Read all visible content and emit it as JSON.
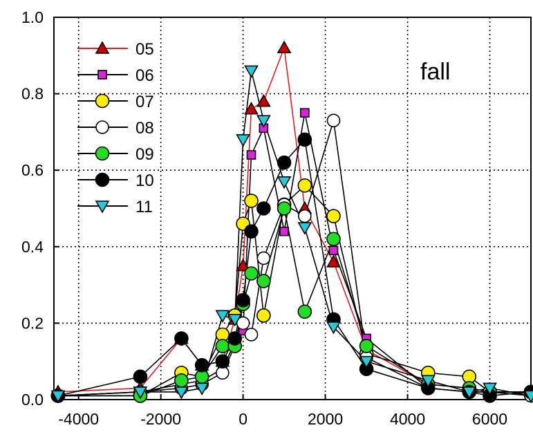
{
  "chart_data": {
    "type": "line",
    "title": "",
    "xlabel": "",
    "ylabel": "",
    "annotation": "fall",
    "xlim": [
      -4600,
      7000
    ],
    "ylim": [
      0,
      1.0
    ],
    "xticks": [
      "-4000",
      "-2000",
      "0",
      "2000",
      "4000",
      "6000"
    ],
    "yticks": [
      "0.0",
      "0.2",
      "0.4",
      "0.6",
      "0.8",
      "1.0"
    ],
    "grid": true,
    "legend_position": "top-left",
    "series": [
      {
        "name": "05",
        "marker": "triangle-up",
        "fill": "#cc0000",
        "line": "#e81c1c",
        "x": [
          -4500,
          -2500,
          -1500,
          -1000,
          -500,
          -200,
          0,
          200,
          500,
          1000,
          1500,
          2200,
          3000,
          4500,
          5500,
          6000,
          7000
        ],
        "y": [
          0.02,
          0.03,
          0.16,
          0.09,
          0.1,
          0.21,
          0.35,
          0.76,
          0.78,
          0.92,
          0.5,
          0.36,
          0.13,
          0.04,
          0.03,
          0.02,
          0.02
        ]
      },
      {
        "name": "06",
        "marker": "square",
        "fill": "#dd22dd",
        "line": "#000000",
        "x": [
          -4500,
          -2500,
          -1500,
          -1000,
          -500,
          -200,
          0,
          200,
          500,
          1000,
          1500,
          2200,
          3000,
          4500,
          5500,
          6000,
          7000
        ],
        "y": [
          0.01,
          0.02,
          0.04,
          0.05,
          0.08,
          0.15,
          0.18,
          0.64,
          0.71,
          0.44,
          0.75,
          0.39,
          0.16,
          0.03,
          0.02,
          0.02,
          0.01
        ]
      },
      {
        "name": "07",
        "marker": "circle",
        "fill": "#ffee00",
        "line": "#000000",
        "x": [
          -4500,
          -2500,
          -1500,
          -1000,
          -500,
          -200,
          0,
          200,
          500,
          1000,
          1500,
          2200,
          3000,
          4500,
          5500,
          6000,
          7000
        ],
        "y": [
          0.01,
          0.01,
          0.07,
          0.06,
          0.17,
          0.22,
          0.46,
          0.52,
          0.22,
          0.51,
          0.56,
          0.48,
          0.12,
          0.07,
          0.06,
          0.02,
          0.02
        ]
      },
      {
        "name": "08",
        "marker": "circle-open",
        "fill": "#ffffff",
        "line": "#000000",
        "x": [
          -4500,
          -2500,
          -1500,
          -1000,
          -500,
          -200,
          0,
          200,
          500,
          1000,
          1500,
          2200,
          3000,
          4500,
          5500,
          6000,
          7000
        ],
        "y": [
          0.01,
          0.02,
          0.03,
          0.04,
          0.07,
          0.14,
          0.2,
          0.17,
          0.37,
          0.51,
          0.48,
          0.73,
          0.11,
          0.03,
          0.02,
          0.02,
          0.01
        ]
      },
      {
        "name": "09",
        "marker": "circle",
        "fill": "#22dd22",
        "line": "#000000",
        "x": [
          -4500,
          -2500,
          -1500,
          -1000,
          -500,
          -200,
          0,
          200,
          500,
          1000,
          1500,
          2200,
          3000,
          4500,
          5500,
          6000,
          7000
        ],
        "y": [
          0.01,
          0.01,
          0.05,
          0.06,
          0.14,
          0.14,
          0.25,
          0.33,
          0.31,
          0.5,
          0.23,
          0.42,
          0.14,
          0.04,
          0.03,
          0.02,
          0.02
        ]
      },
      {
        "name": "10",
        "marker": "circle",
        "fill": "#000000",
        "line": "#000000",
        "x": [
          -4500,
          -2500,
          -1500,
          -1000,
          -500,
          -200,
          0,
          200,
          500,
          1000,
          1500,
          2200,
          3000,
          4500,
          5500,
          6000,
          7000
        ],
        "y": [
          0.01,
          0.06,
          0.16,
          0.09,
          0.1,
          0.16,
          0.26,
          0.44,
          0.5,
          0.62,
          0.68,
          0.21,
          0.08,
          0.03,
          0.02,
          0.01,
          0.02
        ]
      },
      {
        "name": "11",
        "marker": "triangle-down",
        "fill": "#22ccdd",
        "line": "#000000",
        "x": [
          -4500,
          -2500,
          -1500,
          -1000,
          -500,
          -200,
          0,
          200,
          500,
          1000,
          1500,
          2200,
          3000,
          4500,
          5500,
          6000,
          7000
        ],
        "y": [
          0.01,
          0.02,
          0.02,
          0.03,
          0.22,
          0.21,
          0.68,
          0.86,
          0.73,
          0.57,
          0.45,
          0.19,
          0.1,
          0.05,
          0.02,
          0.03,
          0.01
        ]
      }
    ]
  }
}
